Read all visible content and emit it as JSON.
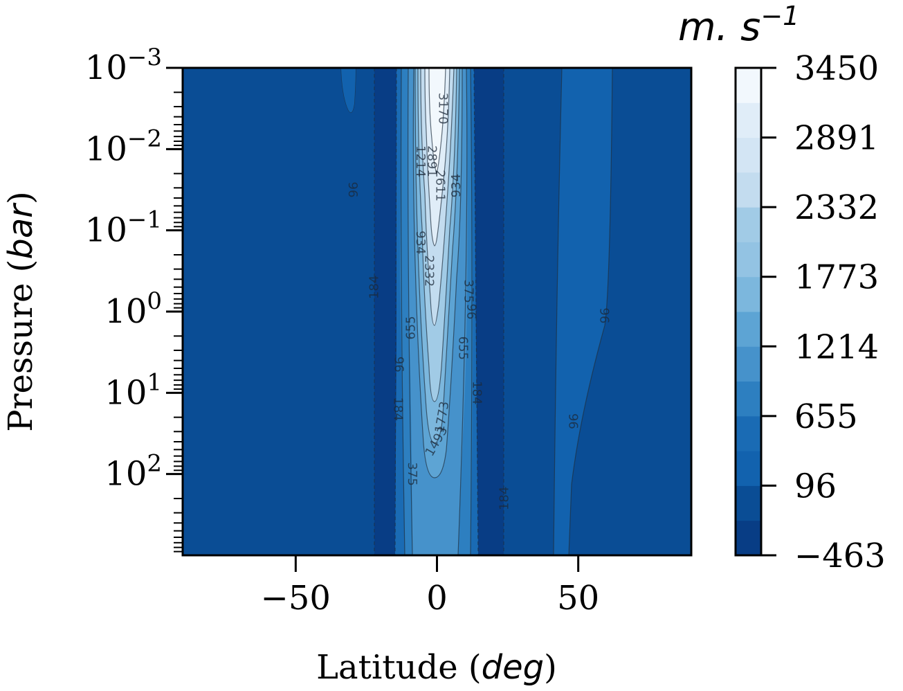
{
  "chart_data": {
    "type": "contour",
    "xlabel": {
      "text": "Latitude (",
      "italic": "deg",
      "close": ")"
    },
    "ylabel": {
      "text": "Pressure (",
      "italic": "bar",
      "close": ")"
    },
    "xlim": [
      -90,
      90
    ],
    "ylim_bar": [
      0.001,
      1000
    ],
    "y_log": true,
    "y_inverted": true,
    "x_ticks": [
      {
        "value": -50,
        "label": "−50"
      },
      {
        "value": 0,
        "label": "0"
      },
      {
        "value": 50,
        "label": "50"
      }
    ],
    "y_ticks": [
      {
        "exp": -3,
        "base": "10",
        "sup": "−3"
      },
      {
        "exp": -2,
        "base": "10",
        "sup": "−2"
      },
      {
        "exp": -1,
        "base": "10",
        "sup": "−1"
      },
      {
        "exp": 0,
        "base": "10",
        "sup": "0"
      },
      {
        "exp": 1,
        "base": "10",
        "sup": "1"
      },
      {
        "exp": 2,
        "base": "10",
        "sup": "2"
      }
    ],
    "colorbar": {
      "unit": {
        "base": "m. s",
        "sup": "−1"
      },
      "vmin": -463,
      "vmax": 3450,
      "tick_values": [
        -463,
        96,
        655,
        1214,
        1773,
        2332,
        2891,
        3450
      ],
      "tick_labels": [
        "−463",
        "96",
        "655",
        "1214",
        "1773",
        "2332",
        "2891",
        "3450"
      ],
      "levels": [
        -463,
        -183.5,
        96,
        375.5,
        655,
        934.5,
        1214,
        1493.5,
        1773,
        2052.5,
        2332,
        2611.5,
        2891,
        3170.5,
        3450
      ]
    },
    "contour_labels": [
      {
        "text": "96",
        "lat": -30,
        "p_exp": -1.5,
        "rot": 90
      },
      {
        "text": "184",
        "lat": -22,
        "p_exp": -0.3,
        "rot": -90
      },
      {
        "text": "655",
        "lat": -9,
        "p_exp": 0.2,
        "rot": -90
      },
      {
        "text": "96",
        "lat": -13,
        "p_exp": 0.65,
        "rot": -90
      },
      {
        "text": "184",
        "lat": -14,
        "p_exp": 1.2,
        "rot": 90
      },
      {
        "text": "375",
        "lat": -9,
        "p_exp": 2.0,
        "rot": 90
      },
      {
        "text": "1214",
        "lat": -6,
        "p_exp": -1.85,
        "rot": 90
      },
      {
        "text": "2891",
        "lat": -2,
        "p_exp": -1.85,
        "rot": 90
      },
      {
        "text": "3170",
        "lat": 2,
        "p_exp": -2.5,
        "rot": 90
      },
      {
        "text": "2611",
        "lat": 1,
        "p_exp": -1.55,
        "rot": 90
      },
      {
        "text": "934",
        "lat": -6,
        "p_exp": -0.85,
        "rot": 90
      },
      {
        "text": "934",
        "lat": 7,
        "p_exp": -1.55,
        "rot": -90
      },
      {
        "text": "2332",
        "lat": -3,
        "p_exp": -0.5,
        "rot": 90
      },
      {
        "text": "375",
        "lat": 11,
        "p_exp": -0.25,
        "rot": 90
      },
      {
        "text": "96",
        "lat": 12,
        "p_exp": 0.0,
        "rot": 90
      },
      {
        "text": "655",
        "lat": 9,
        "p_exp": 0.45,
        "rot": 90
      },
      {
        "text": "184",
        "lat": 14,
        "p_exp": 1.0,
        "rot": 90
      },
      {
        "text": "1773",
        "lat": 2,
        "p_exp": 1.3,
        "rot": -80
      },
      {
        "text": "1493",
        "lat": 0,
        "p_exp": 1.6,
        "rot": -60
      },
      {
        "text": "184",
        "lat": 24,
        "p_exp": 2.3,
        "rot": -90
      },
      {
        "text": "96",
        "lat": 59,
        "p_exp": 0.05,
        "rot": 90
      },
      {
        "text": "96",
        "lat": 48,
        "p_exp": 1.35,
        "rot": 90
      }
    ]
  }
}
